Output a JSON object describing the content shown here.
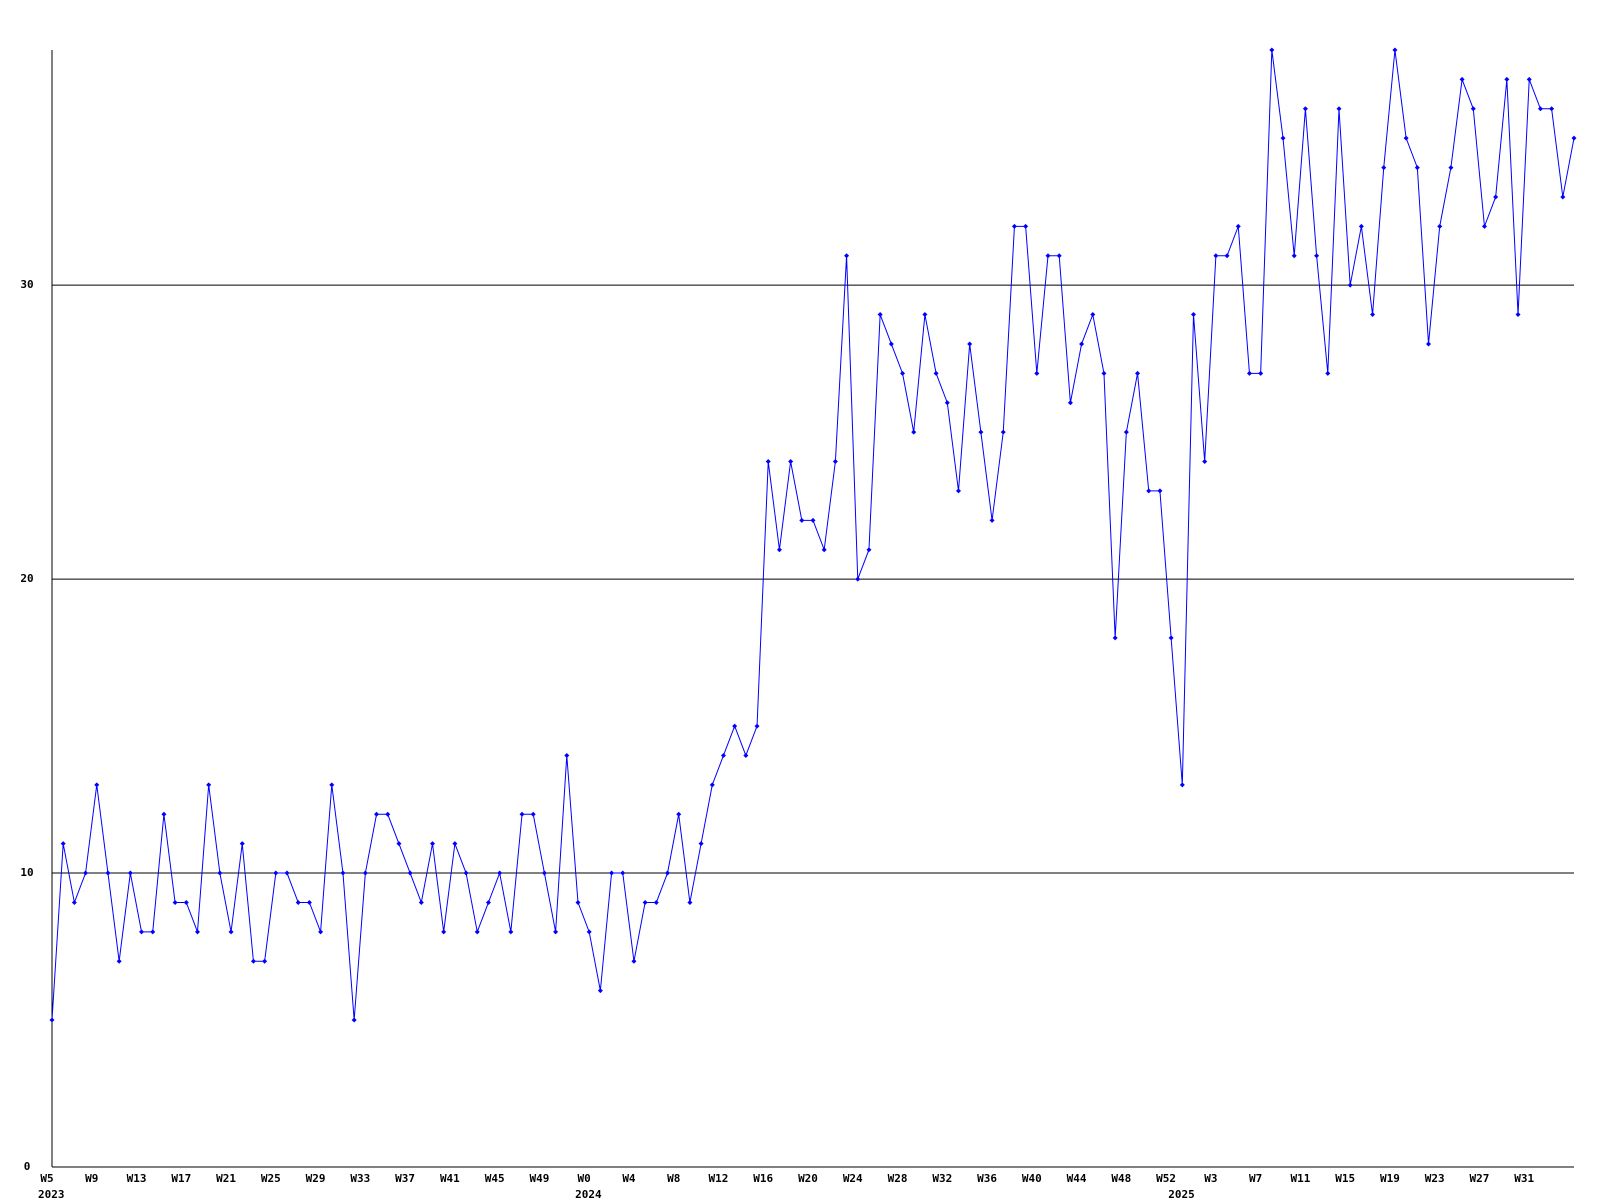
{
  "chart_data": {
    "type": "line",
    "categories": [
      "W5",
      null,
      null,
      null,
      "W9",
      null,
      null,
      null,
      "W13",
      null,
      null,
      null,
      "W17",
      null,
      null,
      null,
      "W21",
      null,
      null,
      null,
      "W25",
      null,
      null,
      null,
      "W29",
      null,
      null,
      null,
      "W33",
      null,
      null,
      null,
      "W37",
      null,
      null,
      null,
      "W41",
      null,
      null,
      null,
      "W45",
      null,
      null,
      null,
      "W49",
      null,
      null,
      null,
      "W0",
      null,
      null,
      null,
      "W4",
      null,
      null,
      null,
      "W8",
      null,
      null,
      null,
      "W12",
      null,
      null,
      null,
      "W16",
      null,
      null,
      null,
      "W20",
      null,
      null,
      null,
      "W24",
      null,
      null,
      null,
      "W28",
      null,
      null,
      null,
      "W32",
      null,
      null,
      null,
      "W36",
      null,
      null,
      null,
      "W40",
      null,
      null,
      null,
      "W44",
      null,
      null,
      null,
      "W48",
      null,
      null,
      null,
      "W52",
      null,
      null,
      null,
      "W3",
      null,
      null,
      null,
      "W7",
      null,
      null,
      null,
      "W11",
      null,
      null,
      null,
      "W15",
      null,
      null,
      null,
      "W19",
      null,
      null,
      null,
      "W23",
      null,
      null,
      null,
      "W27",
      null,
      null,
      null,
      "W31",
      null,
      null,
      null,
      null
    ],
    "year_labels": [
      "2023",
      null,
      null,
      null,
      null,
      null,
      null,
      null,
      null,
      null,
      null,
      null,
      null,
      null,
      null,
      null,
      null,
      null,
      null,
      null,
      null,
      null,
      null,
      null,
      null,
      null,
      null,
      null,
      null,
      null,
      null,
      null,
      null,
      null,
      null,
      null,
      null,
      null,
      null,
      null,
      null,
      null,
      null,
      null,
      null,
      null,
      null,
      null,
      "2024",
      null,
      null,
      null,
      null,
      null,
      null,
      null,
      null,
      null,
      null,
      null,
      null,
      null,
      null,
      null,
      null,
      null,
      null,
      null,
      null,
      null,
      null,
      null,
      null,
      null,
      null,
      null,
      null,
      null,
      null,
      null,
      null,
      null,
      null,
      null,
      null,
      null,
      null,
      null,
      null,
      null,
      null,
      null,
      null,
      null,
      null,
      null,
      null,
      null,
      null,
      null,
      null,
      "2025",
      null,
      null,
      null,
      null,
      null,
      null,
      null,
      null,
      null,
      null,
      null,
      null,
      null,
      null,
      null,
      null,
      null,
      null,
      null,
      null,
      null,
      null,
      null,
      null,
      null,
      null,
      null,
      null,
      null,
      null,
      null,
      null,
      null,
      null,
      null
    ],
    "series": [
      {
        "color": "#0000ff",
        "values": [
          5,
          11,
          9,
          10,
          13,
          10,
          7,
          10,
          8,
          8,
          12,
          9,
          9,
          8,
          13,
          10,
          8,
          11,
          7,
          7,
          10,
          10,
          9,
          9,
          8,
          13,
          10,
          5,
          10,
          12,
          12,
          11,
          10,
          9,
          11,
          8,
          11,
          10,
          8,
          9,
          10,
          8,
          12,
          12,
          10,
          8,
          14,
          9,
          8,
          6,
          10,
          10,
          7,
          9,
          9,
          10,
          12,
          9,
          11,
          13,
          14,
          15,
          14,
          15,
          24,
          21,
          24,
          22,
          22,
          21,
          24,
          31,
          20,
          21,
          29,
          28,
          27,
          25,
          29,
          27,
          26,
          23,
          28,
          25,
          22,
          25,
          32,
          32,
          27,
          31,
          31,
          26,
          28,
          29,
          27,
          18,
          25,
          27,
          23,
          23,
          18,
          13,
          29,
          24,
          31,
          31,
          32,
          27,
          27,
          38,
          35,
          31,
          36,
          31,
          27,
          36,
          30,
          32,
          29,
          34,
          38,
          35,
          34,
          28,
          32,
          34,
          37,
          36,
          32,
          33,
          37,
          29,
          37,
          36,
          36,
          33,
          35
        ]
      }
    ],
    "ylim": [
      0,
      38
    ],
    "yticks": [
      0,
      10,
      20,
      30
    ],
    "grid": true
  }
}
